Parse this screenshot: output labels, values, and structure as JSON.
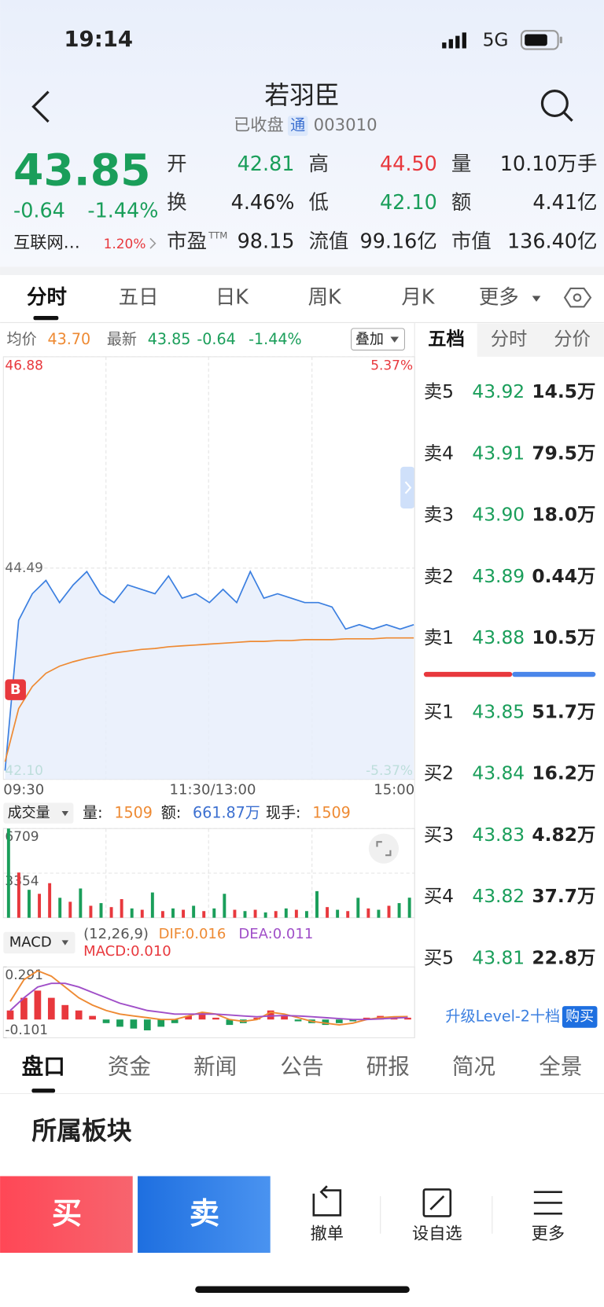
{
  "status_bar": {
    "time": "19:14",
    "network": "5G"
  },
  "header": {
    "title": "若羽臣",
    "status": "已收盘",
    "badge": "通",
    "code": "003010"
  },
  "quote": {
    "price": "43.85",
    "change": "-0.64",
    "change_pct": "-1.44%",
    "sector": "互联网…",
    "sector_pct": "1.20%",
    "up_color": "#e8383d",
    "down_color": "#1a9e5a",
    "fields": [
      {
        "label": "开",
        "value": "42.81",
        "color": "#1a9e5a"
      },
      {
        "label": "高",
        "value": "44.50",
        "color": "#e8383d"
      },
      {
        "label": "量",
        "value": "10.10万手",
        "color": "#222222"
      },
      {
        "label": "换",
        "value": "4.46%",
        "color": "#222222"
      },
      {
        "label": "低",
        "value": "42.10",
        "color": "#1a9e5a"
      },
      {
        "label": "额",
        "value": "4.41亿",
        "color": "#222222"
      },
      {
        "label": "市盈",
        "sup": "TTM",
        "value": "98.15",
        "color": "#222222"
      },
      {
        "label": "流值",
        "value": "99.16亿",
        "color": "#222222"
      },
      {
        "label": "市值",
        "value": "136.40亿",
        "color": "#222222"
      }
    ]
  },
  "chart_tabs": [
    "分时",
    "五日",
    "日K",
    "周K",
    "月K",
    "更多"
  ],
  "intraday": {
    "avg_label": "均价",
    "avg": "43.70",
    "latest_label": "最新",
    "latest": "43.85",
    "change": "-0.64",
    "change_pct": "-1.44%",
    "overlay": "叠加",
    "marker": "B",
    "chart": {
      "type": "line",
      "ylim": [
        42.1,
        46.88
      ],
      "yticks": [
        46.88,
        44.49,
        {
          "value": 42.1,
          "label": "42.10"
        }
      ],
      "y2lim": [
        -5.37,
        5.37
      ],
      "y2ticks": [
        {
          "value": 5.37,
          "label": "5.37%"
        },
        {
          "value": -5.37,
          "label": "-5.37%"
        }
      ],
      "x_labels": [
        "09:30",
        "11:30/13:00",
        "15:00"
      ],
      "series": [
        {
          "color": "#3b7fe0",
          "values": [
            42.2,
            43.9,
            44.2,
            44.35,
            44.1,
            44.3,
            44.45,
            44.2,
            44.1,
            44.3,
            44.25,
            44.2,
            44.4,
            44.15,
            44.2,
            44.1,
            44.25,
            44.1,
            44.45,
            44.15,
            44.2,
            44.15,
            44.1,
            44.1,
            44.05,
            43.8,
            43.85,
            43.8,
            43.85,
            43.8,
            43.85
          ]
        },
        {
          "color": "#ee8a33",
          "values": [
            42.3,
            42.9,
            43.15,
            43.3,
            43.38,
            43.43,
            43.47,
            43.5,
            43.53,
            43.55,
            43.57,
            43.58,
            43.6,
            43.61,
            43.62,
            43.63,
            43.64,
            43.65,
            43.66,
            43.66,
            43.67,
            43.67,
            43.68,
            43.68,
            43.68,
            43.69,
            43.69,
            43.69,
            43.7,
            43.7,
            43.7
          ]
        }
      ]
    }
  },
  "volume": {
    "menu": "成交量",
    "stats": [
      {
        "label": "量:",
        "value": "1509",
        "color": "#ee8a33"
      },
      {
        "label": "额:",
        "value": "661.87万",
        "color": "#3b6fd0"
      },
      {
        "label": "现手:",
        "value": "1509",
        "color": "#ee8a33"
      }
    ],
    "chart": {
      "type": "bar",
      "ylim": [
        0,
        6709
      ],
      "yticks": [
        6709,
        3354
      ],
      "values": [
        6709,
        3400,
        2100,
        1800,
        2600,
        1500,
        1200,
        2200,
        900,
        1100,
        800,
        1400,
        700,
        600,
        1900,
        500,
        700,
        600,
        900,
        500,
        700,
        1800,
        600,
        500,
        600,
        400,
        500,
        700,
        600,
        500,
        2000,
        800,
        600,
        500,
        1500,
        700,
        600,
        900,
        1100,
        1509
      ],
      "colors": [
        "#1a9e5a",
        "#e8383d",
        "#1a9e5a",
        "#e8383d",
        "#e8383d",
        "#1a9e5a",
        "#e8383d",
        "#1a9e5a",
        "#e8383d",
        "#1a9e5a",
        "#e8383d",
        "#e8383d",
        "#1a9e5a",
        "#e8383d",
        "#1a9e5a",
        "#e8383d",
        "#1a9e5a",
        "#e8383d",
        "#1a9e5a",
        "#e8383d",
        "#1a9e5a",
        "#1a9e5a",
        "#e8383d",
        "#1a9e5a",
        "#e8383d",
        "#1a9e5a",
        "#e8383d",
        "#1a9e5a",
        "#e8383d",
        "#1a9e5a",
        "#1a9e5a",
        "#e8383d",
        "#1a9e5a",
        "#e8383d",
        "#1a9e5a",
        "#e8383d",
        "#1a9e5a",
        "#e8383d",
        "#1a9e5a",
        "#1a9e5a"
      ]
    }
  },
  "macd": {
    "menu": "MACD",
    "params": "(12,26,9)",
    "dif": "DIF:0.016",
    "dea": "DEA:0.011",
    "macd": "MACD:0.010",
    "chart": {
      "type": "macd",
      "ylim": [
        -0.101,
        0.291
      ],
      "yticks": [
        0.291,
        -0.101
      ],
      "up_color": "#e8383d",
      "down_color": "#1a9e5a",
      "histogram": [
        0.05,
        0.12,
        0.16,
        0.12,
        0.08,
        0.05,
        0.02,
        -0.02,
        -0.04,
        -0.05,
        -0.06,
        -0.04,
        -0.02,
        0.02,
        0.04,
        0.01,
        -0.03,
        -0.02,
        0.01,
        0.05,
        0.02,
        -0.01,
        -0.02,
        -0.03,
        -0.02,
        -0.01,
        0.01,
        0.02,
        0.01,
        0.01
      ],
      "series": [
        {
          "color": "#ee8a33",
          "values": [
            0.1,
            0.22,
            0.27,
            0.24,
            0.18,
            0.12,
            0.08,
            0.05,
            0.03,
            0.02,
            0.01,
            0,
            0,
            0.02,
            0.04,
            0.03,
            0,
            -0.01,
            0,
            0.04,
            0.03,
            0.01,
            -0.01,
            -0.02,
            -0.03,
            -0.02,
            0,
            0.01,
            0.015,
            0.016
          ]
        },
        {
          "color": "#a04fc8",
          "values": [
            0.05,
            0.12,
            0.18,
            0.2,
            0.2,
            0.18,
            0.15,
            0.12,
            0.09,
            0.07,
            0.05,
            0.04,
            0.03,
            0.03,
            0.03,
            0.03,
            0.025,
            0.02,
            0.015,
            0.02,
            0.022,
            0.02,
            0.015,
            0.01,
            0.005,
            0,
            0,
            0.003,
            0.008,
            0.011
          ]
        }
      ]
    }
  },
  "order_book": {
    "tabs": [
      "五档",
      "分时",
      "分价"
    ],
    "sells": [
      {
        "label": "卖5",
        "price": "43.92",
        "volume": "14.5万"
      },
      {
        "label": "卖4",
        "price": "43.91",
        "volume": "79.5万"
      },
      {
        "label": "卖3",
        "price": "43.90",
        "volume": "18.0万"
      },
      {
        "label": "卖2",
        "price": "43.89",
        "volume": "0.44万"
      },
      {
        "label": "卖1",
        "price": "43.88",
        "volume": "10.5万"
      }
    ],
    "buys": [
      {
        "label": "买1",
        "price": "43.85",
        "volume": "51.7万"
      },
      {
        "label": "买2",
        "price": "43.84",
        "volume": "16.2万"
      },
      {
        "label": "买3",
        "price": "43.83",
        "volume": "4.82万"
      },
      {
        "label": "买4",
        "price": "43.82",
        "volume": "37.7万"
      },
      {
        "label": "买5",
        "price": "43.81",
        "volume": "22.8万"
      }
    ],
    "upgrade": "升级Level-2十档",
    "purchase": "购买"
  },
  "info_tabs": [
    "盘口",
    "资金",
    "新闻",
    "公告",
    "研报",
    "简况",
    "全景"
  ],
  "section_title": "所属板块",
  "actions": {
    "buy": "买",
    "sell": "卖",
    "cancel": "撤单",
    "watch": "设自选",
    "more": "更多"
  }
}
